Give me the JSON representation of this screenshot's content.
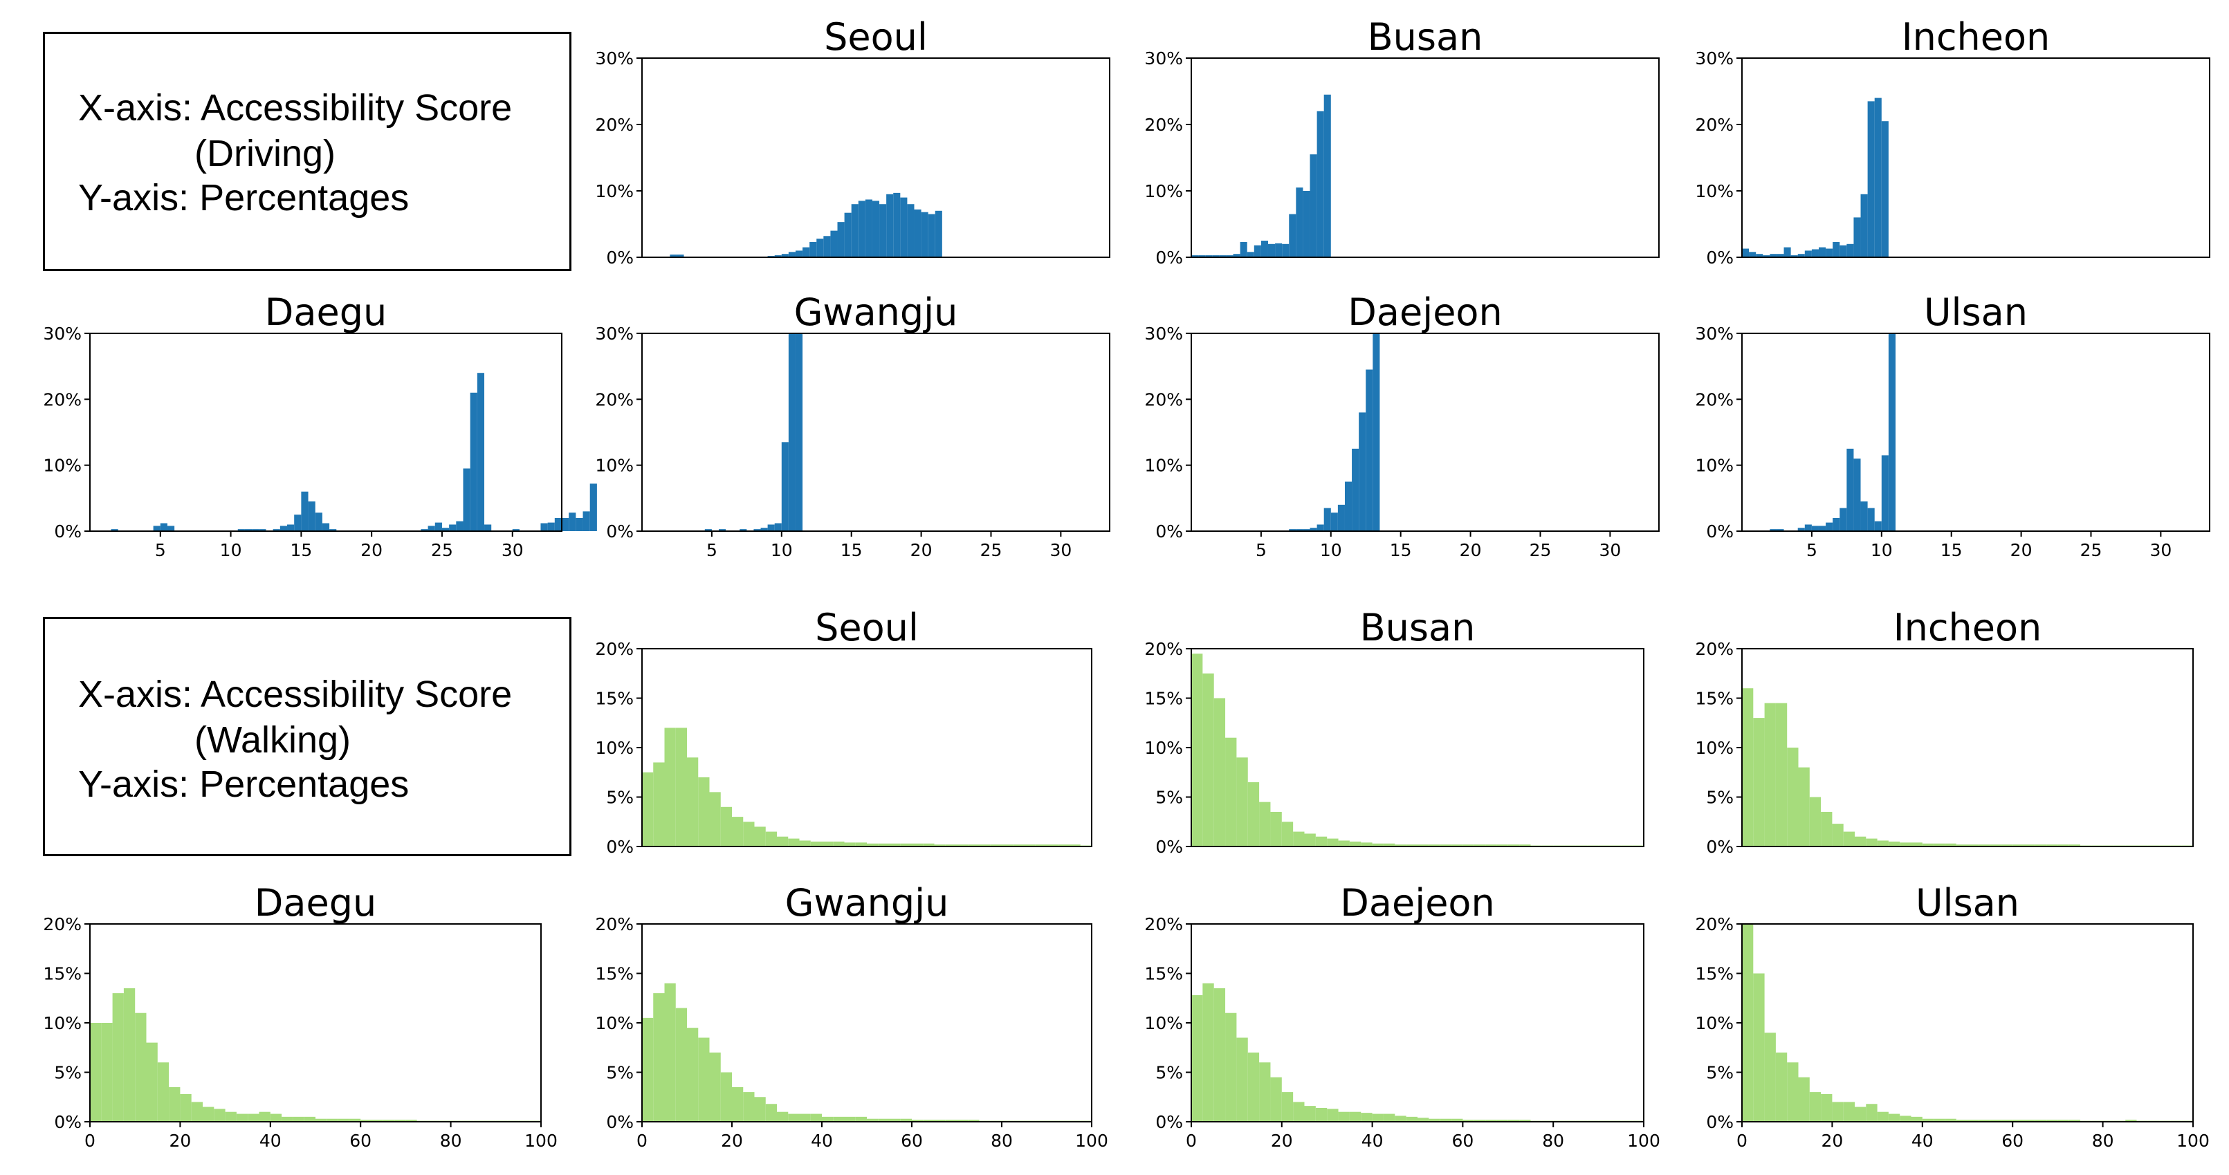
{
  "legends": [
    {
      "line1": "X-axis: Accessibility Score",
      "line2": "(Driving)",
      "line3": "Y-axis: Percentages"
    },
    {
      "line1": "X-axis: Accessibility Score",
      "line2": "(Walking)",
      "line3": "Y-axis: Percentages"
    }
  ],
  "colors": {
    "driving": "#1f77b4",
    "walking": "#a6dc7c"
  },
  "chart_data": [
    {
      "type": "bar",
      "group": "driving",
      "title": "Seoul",
      "x_start": 0,
      "bin_width": 0.5,
      "xlim": [
        0,
        33.5
      ],
      "ylim": [
        0,
        30
      ],
      "yticks": [
        0,
        10,
        20,
        30
      ],
      "xticks": [],
      "ytick_format": "percent",
      "values": [
        0,
        0,
        0,
        0,
        0.4,
        0.4,
        0,
        0,
        0,
        0,
        0,
        0,
        0,
        0,
        0,
        0,
        0,
        0,
        0.2,
        0.3,
        0.5,
        0.8,
        1,
        1.5,
        2.3,
        2.8,
        3.2,
        4,
        5.3,
        6.7,
        8,
        8.5,
        8.7,
        8.5,
        8,
        9.5,
        9.7,
        9,
        8,
        7.2,
        6.8,
        6.5,
        7
      ]
    },
    {
      "type": "bar",
      "group": "driving",
      "title": "Busan",
      "x_start": 0,
      "bin_width": 0.5,
      "xlim": [
        0,
        33.5
      ],
      "ylim": [
        0,
        30
      ],
      "yticks": [
        0,
        10,
        20,
        30
      ],
      "xticks": [],
      "ytick_format": "percent",
      "values": [
        0.3,
        0.3,
        0.3,
        0.3,
        0.3,
        0.3,
        0.5,
        2.3,
        0.8,
        1.8,
        2.5,
        2,
        2.1,
        2,
        6.5,
        10.5,
        10,
        15.5,
        22,
        24.5
      ]
    },
    {
      "type": "bar",
      "group": "driving",
      "title": "Incheon",
      "x_start": 0,
      "bin_width": 0.5,
      "xlim": [
        0,
        33.5
      ],
      "ylim": [
        0,
        30
      ],
      "yticks": [
        0,
        10,
        20,
        30
      ],
      "xticks": [],
      "ytick_format": "percent",
      "values": [
        1.3,
        0.8,
        0.5,
        0.3,
        0.5,
        0.5,
        1.5,
        0.3,
        0.5,
        1,
        1.2,
        1.5,
        1.3,
        2.3,
        1.8,
        2,
        6,
        9.5,
        23.5,
        24,
        20.5
      ]
    },
    {
      "type": "bar",
      "group": "driving",
      "title": "Daegu",
      "x_start": 0,
      "bin_width": 0.5,
      "xlim": [
        0,
        33.5
      ],
      "ylim": [
        0,
        30
      ],
      "yticks": [
        0,
        10,
        20,
        30
      ],
      "xticks": [
        5,
        10,
        15,
        20,
        25,
        30
      ],
      "ytick_format": "percent",
      "values": [
        0,
        0,
        0,
        0.3,
        0,
        0,
        0,
        0,
        0,
        0.8,
        1.2,
        0.8,
        0,
        0,
        0,
        0,
        0,
        0,
        0,
        0,
        0,
        0.3,
        0.3,
        0.3,
        0.3,
        0,
        0.3,
        0.8,
        1,
        2.5,
        6,
        4.5,
        2.8,
        1.2,
        0.3,
        0,
        0,
        0,
        0,
        0,
        0,
        0,
        0,
        0,
        0,
        0,
        0,
        0.3,
        0.8,
        1.3,
        0.5,
        1,
        1.5,
        9.5,
        21,
        24,
        1,
        0,
        0,
        0,
        0.3,
        0,
        0,
        0,
        1.2,
        1.3,
        2,
        2,
        2.8,
        2,
        3,
        7.2
      ]
    },
    {
      "type": "bar",
      "group": "driving",
      "title": "Gwangju",
      "x_start": 0,
      "bin_width": 0.5,
      "xlim": [
        0,
        33.5
      ],
      "ylim": [
        0,
        30
      ],
      "yticks": [
        0,
        10,
        20,
        30
      ],
      "xticks": [
        5,
        10,
        15,
        20,
        25,
        30
      ],
      "ytick_format": "percent",
      "values": [
        0,
        0,
        0,
        0,
        0,
        0,
        0,
        0,
        0,
        0.3,
        0,
        0.3,
        0,
        0,
        0.3,
        0,
        0.3,
        0.5,
        1,
        1.2,
        13.5,
        30,
        30
      ]
    },
    {
      "type": "bar",
      "group": "driving",
      "title": "Daejeon",
      "x_start": 0,
      "bin_width": 0.5,
      "xlim": [
        0,
        33.5
      ],
      "ylim": [
        0,
        30
      ],
      "yticks": [
        0,
        10,
        20,
        30
      ],
      "xticks": [
        5,
        10,
        15,
        20,
        25,
        30
      ],
      "ytick_format": "percent",
      "values": [
        0,
        0,
        0,
        0,
        0,
        0,
        0,
        0,
        0,
        0,
        0,
        0,
        0,
        0,
        0.3,
        0.3,
        0.3,
        0.5,
        1,
        3.5,
        2.8,
        4,
        7.5,
        12.5,
        18,
        24.5,
        30
      ]
    },
    {
      "type": "bar",
      "group": "driving",
      "title": "Ulsan",
      "x_start": 0,
      "bin_width": 0.5,
      "xlim": [
        0,
        33.5
      ],
      "ylim": [
        0,
        30
      ],
      "yticks": [
        0,
        10,
        20,
        30
      ],
      "xticks": [
        5,
        10,
        15,
        20,
        25,
        30
      ],
      "ytick_format": "percent",
      "values": [
        0,
        0,
        0,
        0,
        0.3,
        0.3,
        0,
        0,
        0.5,
        1,
        0.8,
        0.8,
        1.3,
        2,
        3.5,
        12.5,
        11,
        4.5,
        3.5,
        1.5,
        11.5,
        30
      ]
    },
    {
      "type": "bar",
      "group": "walking",
      "title": "Seoul",
      "x_start": 0,
      "bin_width": 2.5,
      "xlim": [
        0,
        100
      ],
      "ylim": [
        0,
        20
      ],
      "yticks": [
        0,
        5,
        10,
        15,
        20
      ],
      "xticks": [],
      "ytick_format": "percent",
      "values": [
        7.5,
        8.5,
        12,
        12,
        9,
        7,
        5.5,
        4,
        3,
        2.5,
        2,
        1.5,
        1,
        0.8,
        0.6,
        0.5,
        0.5,
        0.5,
        0.4,
        0.4,
        0.3,
        0.3,
        0.3,
        0.3,
        0.3,
        0.3,
        0.2,
        0.2,
        0.2,
        0.2,
        0.2,
        0.2,
        0.2,
        0.2,
        0.2,
        0.2,
        0.2,
        0.2,
        0.2,
        0.1
      ]
    },
    {
      "type": "bar",
      "group": "walking",
      "title": "Busan",
      "x_start": 0,
      "bin_width": 2.5,
      "xlim": [
        0,
        100
      ],
      "ylim": [
        0,
        20
      ],
      "yticks": [
        0,
        5,
        10,
        15,
        20
      ],
      "xticks": [],
      "ytick_format": "percent",
      "values": [
        19.5,
        17.5,
        15,
        11,
        9,
        6.5,
        4.5,
        3.5,
        2.5,
        1.5,
        1.3,
        1,
        0.8,
        0.6,
        0.5,
        0.4,
        0.3,
        0.3,
        0.2,
        0.2,
        0.2,
        0.2,
        0.2,
        0.2,
        0.2,
        0.2,
        0.2,
        0.2,
        0.2,
        0.2,
        0.1,
        0.1,
        0.1,
        0.1,
        0.1,
        0.1,
        0.1,
        0.1,
        0.1,
        0.1
      ]
    },
    {
      "type": "bar",
      "group": "walking",
      "title": "Incheon",
      "x_start": 0,
      "bin_width": 2.5,
      "xlim": [
        0,
        100
      ],
      "ylim": [
        0,
        20
      ],
      "yticks": [
        0,
        5,
        10,
        15,
        20
      ],
      "xticks": [],
      "ytick_format": "percent",
      "values": [
        16,
        13,
        14.5,
        14.5,
        10,
        8,
        5,
        3.5,
        2.3,
        1.5,
        1,
        0.8,
        0.6,
        0.5,
        0.4,
        0.4,
        0.3,
        0.3,
        0.3,
        0.2,
        0.2,
        0.2,
        0.2,
        0.2,
        0.2,
        0.2,
        0.2,
        0.2,
        0.2,
        0.2,
        0.1,
        0.1,
        0.1,
        0.1,
        0.1,
        0.1,
        0.1,
        0.1,
        0.1,
        0.1
      ]
    },
    {
      "type": "bar",
      "group": "walking",
      "title": "Daegu",
      "x_start": 0,
      "bin_width": 2.5,
      "xlim": [
        0,
        100
      ],
      "ylim": [
        0,
        20
      ],
      "yticks": [
        0,
        5,
        10,
        15,
        20
      ],
      "xticks": [
        0,
        20,
        40,
        60,
        80,
        100
      ],
      "ytick_format": "percent",
      "values": [
        10,
        10,
        13,
        13.5,
        11,
        8,
        6,
        3.5,
        2.8,
        2,
        1.5,
        1.3,
        1,
        0.8,
        0.8,
        1,
        0.8,
        0.5,
        0.5,
        0.5,
        0.3,
        0.3,
        0.3,
        0.3,
        0.2,
        0.2,
        0.2,
        0.2,
        0.2,
        0.1,
        0.1,
        0.1,
        0.1,
        0.1,
        0.1,
        0.1,
        0.1,
        0.1,
        0.1,
        0.1
      ]
    },
    {
      "type": "bar",
      "group": "walking",
      "title": "Gwangju",
      "x_start": 0,
      "bin_width": 2.5,
      "xlim": [
        0,
        100
      ],
      "ylim": [
        0,
        20
      ],
      "yticks": [
        0,
        5,
        10,
        15,
        20
      ],
      "xticks": [
        0,
        20,
        40,
        60,
        80,
        100
      ],
      "ytick_format": "percent",
      "values": [
        10.5,
        13,
        14,
        11.5,
        9.5,
        8.5,
        7,
        5,
        3.5,
        3,
        2.5,
        1.8,
        1,
        0.8,
        0.8,
        0.8,
        0.5,
        0.5,
        0.5,
        0.5,
        0.3,
        0.3,
        0.3,
        0.3,
        0.2,
        0.2,
        0.2,
        0.2,
        0.2,
        0.2,
        0.1,
        0.1,
        0.1,
        0.1,
        0.1,
        0.1,
        0.1,
        0.1,
        0.1,
        0.1
      ]
    },
    {
      "type": "bar",
      "group": "walking",
      "title": "Daejeon",
      "x_start": 0,
      "bin_width": 2.5,
      "xlim": [
        0,
        100
      ],
      "ylim": [
        0,
        20
      ],
      "yticks": [
        0,
        5,
        10,
        15,
        20
      ],
      "xticks": [
        0,
        20,
        40,
        60,
        80,
        100
      ],
      "ytick_format": "percent",
      "values": [
        12.8,
        14,
        13.5,
        11,
        8.5,
        7,
        6,
        4.5,
        3,
        2,
        1.6,
        1.4,
        1.3,
        1,
        1,
        0.9,
        0.8,
        0.8,
        0.6,
        0.5,
        0.4,
        0.3,
        0.3,
        0.3,
        0.2,
        0.2,
        0.2,
        0.2,
        0.2,
        0.2,
        0.1,
        0.1,
        0.1,
        0.1,
        0.1,
        0.1,
        0.1,
        0.1,
        0.1,
        0.1
      ]
    },
    {
      "type": "bar",
      "group": "walking",
      "title": "Ulsan",
      "x_start": 0,
      "bin_width": 2.5,
      "xlim": [
        0,
        100
      ],
      "ylim": [
        0,
        20
      ],
      "yticks": [
        0,
        5,
        10,
        15,
        20
      ],
      "xticks": [
        0,
        20,
        40,
        60,
        80,
        100
      ],
      "ytick_format": "percent",
      "values": [
        20,
        15,
        9,
        7,
        6,
        4.5,
        3,
        2.8,
        2,
        2,
        1.5,
        1.8,
        1,
        0.8,
        0.6,
        0.5,
        0.3,
        0.3,
        0.3,
        0.2,
        0.2,
        0.2,
        0.2,
        0.2,
        0.2,
        0.2,
        0.2,
        0.2,
        0.2,
        0.2,
        0.1,
        0.1,
        0.1,
        0.1,
        0.2,
        0.1,
        0.1,
        0.1,
        0.1,
        0.1
      ]
    }
  ]
}
